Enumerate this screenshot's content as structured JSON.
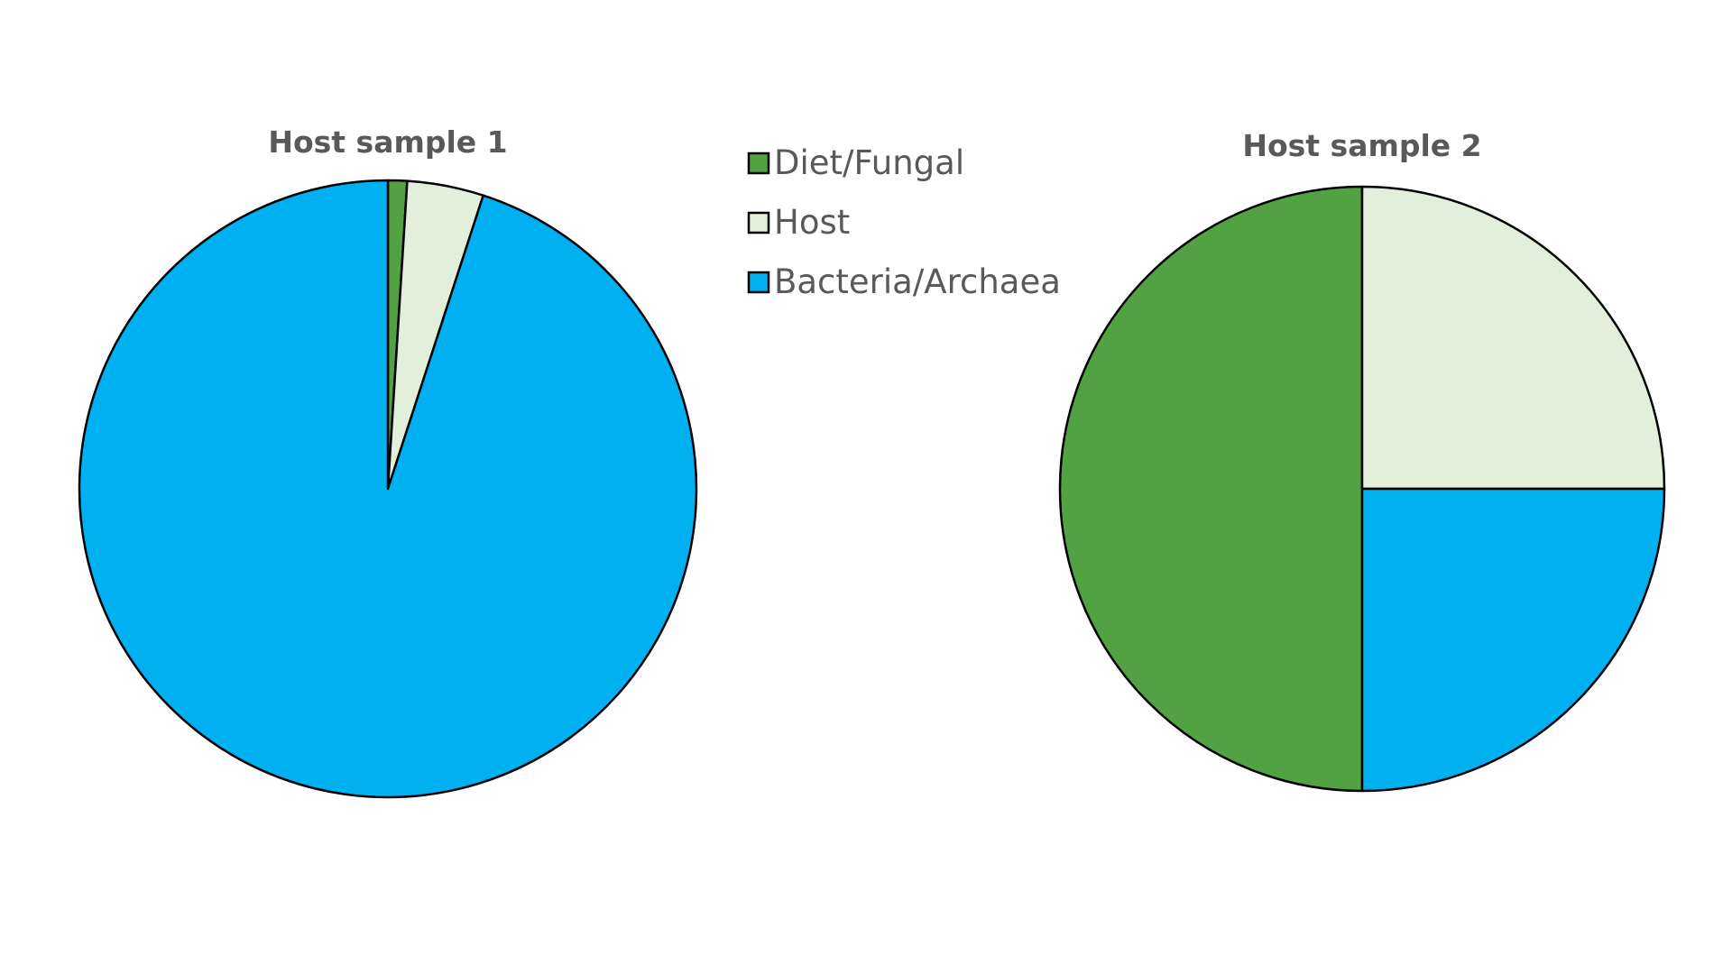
{
  "legend": {
    "items": [
      {
        "label": "Diet/Fungal",
        "color": "#52A244"
      },
      {
        "label": "Host",
        "color": "#E2EFDA"
      },
      {
        "label": "Bacteria/Archaea",
        "color": "#00B0F0"
      }
    ]
  },
  "chart_data": [
    {
      "type": "pie",
      "title": "Host sample 1",
      "categories": [
        "Diet/Fungal",
        "Host",
        "Bacteria/Archaea"
      ],
      "values": [
        1,
        4,
        95
      ],
      "colors": [
        "#52A244",
        "#E2EFDA",
        "#00B0F0"
      ],
      "start": "12 o'clock",
      "direction": "clockwise"
    },
    {
      "type": "pie",
      "title": "Host sample 2",
      "categories": [
        "Diet/Fungal",
        "Host",
        "Bacteria/Archaea"
      ],
      "values": [
        50,
        25,
        25
      ],
      "colors": [
        "#52A244",
        "#E2EFDA",
        "#00B0F0"
      ],
      "start": "6 o'clock",
      "direction": "clockwise"
    }
  ]
}
